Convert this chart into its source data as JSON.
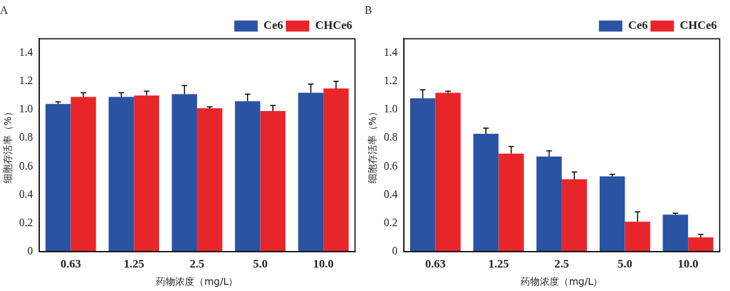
{
  "chart_data": [
    {
      "type": "bar",
      "title": "A",
      "xlabel": "药物浓度（mg/L）",
      "ylabel": "细胞存活率（%）",
      "categories": [
        "0.63",
        "1.25",
        "2.5",
        "5.0",
        "10.0"
      ],
      "series": [
        {
          "name": "Ce6",
          "color": "#2a53a3",
          "values": [
            1.04,
            1.09,
            1.11,
            1.06,
            1.12
          ],
          "errors": [
            0.015,
            0.03,
            0.06,
            0.05,
            0.06
          ]
        },
        {
          "name": "CHCe6",
          "color": "#e8262a",
          "values": [
            1.09,
            1.1,
            1.01,
            0.99,
            1.15
          ],
          "errors": [
            0.03,
            0.03,
            0.01,
            0.04,
            0.05
          ]
        }
      ],
      "ylim": [
        0,
        1.5
      ],
      "yticks": [
        0,
        0.2,
        0.4,
        0.6,
        0.8,
        {
          "value": 1,
          "label": "1.0"
        },
        1.2,
        1.4
      ],
      "grid": false,
      "legend": "top right"
    },
    {
      "type": "bar",
      "title": "B",
      "xlabel": "药物浓度（mg/L）",
      "ylabel": "细胞存活率（%）",
      "categories": [
        "0.63",
        "1.25",
        "2.5",
        "5.0",
        "10.0"
      ],
      "series": [
        {
          "name": "Ce6",
          "color": "#2a53a3",
          "values": [
            1.08,
            0.83,
            0.67,
            0.53,
            0.26
          ],
          "errors": [
            0.06,
            0.04,
            0.04,
            0.015,
            0.01
          ]
        },
        {
          "name": "CHCe6",
          "color": "#e8262a",
          "values": [
            1.12,
            0.69,
            0.51,
            0.21,
            0.1
          ],
          "errors": [
            0.01,
            0.05,
            0.05,
            0.07,
            0.02
          ]
        }
      ],
      "ylim": [
        0,
        1.5
      ],
      "yticks": [
        0,
        0.2,
        0.4,
        0.6,
        0.8,
        {
          "value": 1,
          "label": "1.0"
        },
        1.2,
        1.4
      ],
      "grid": false,
      "legend": "top right"
    }
  ]
}
